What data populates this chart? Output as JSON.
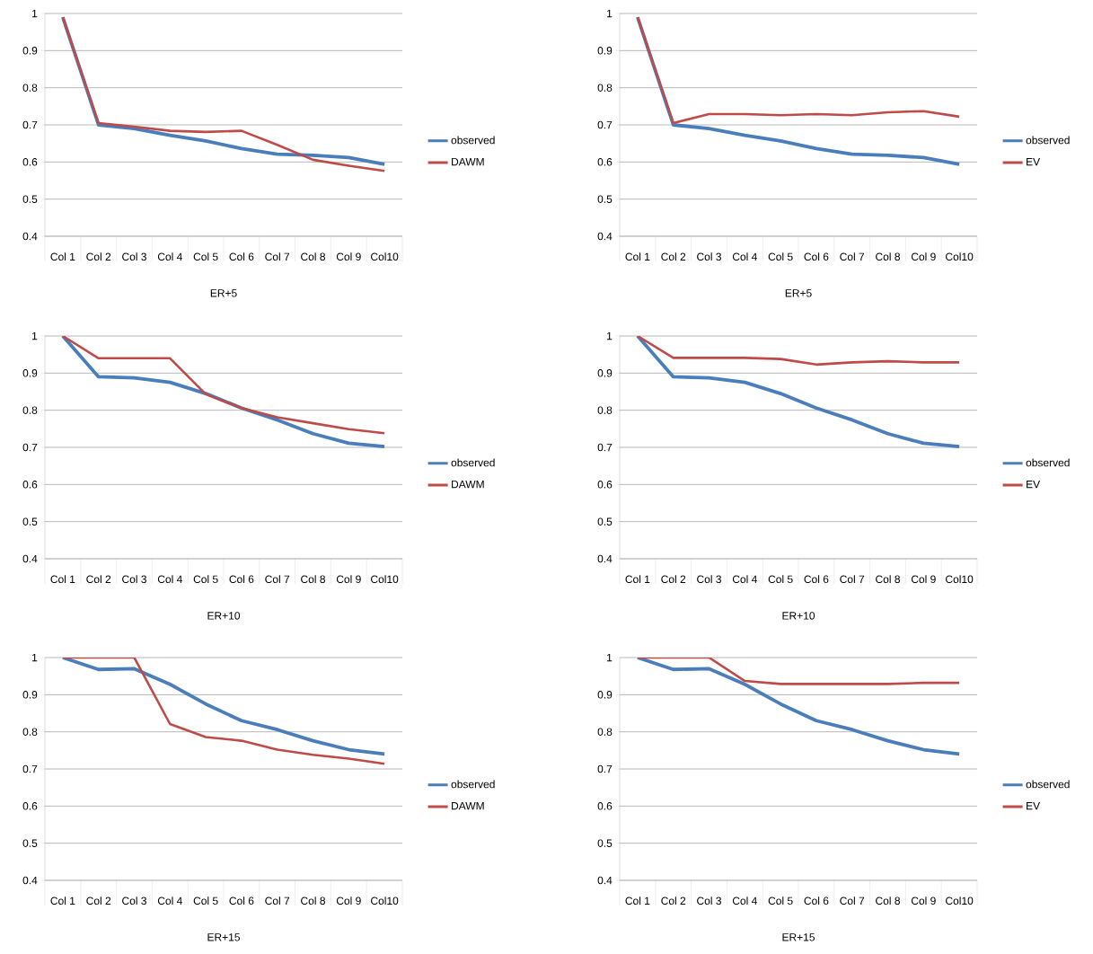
{
  "chart_data": [
    {
      "type": "line",
      "xlabel": "ER+5",
      "categories": [
        "Col 1",
        "Col 2",
        "Col 3",
        "Col 4",
        "Col 5",
        "Col 6",
        "Col 7",
        "Col 8",
        "Col 9",
        "Col10"
      ],
      "ylim": [
        0.4,
        1
      ],
      "yticks": [
        0.4,
        0.5,
        0.6,
        0.7,
        0.8,
        0.9,
        1
      ],
      "grid": "y",
      "legend": "right",
      "series": [
        {
          "name": "observed",
          "color": "#4a7ebb",
          "values": [
            0.99,
            0.7,
            0.69,
            0.672,
            0.657,
            0.636,
            0.621,
            0.618,
            0.612,
            0.594
          ]
        },
        {
          "name": "DAWM",
          "color": "#be4b48",
          "values": [
            0.99,
            0.705,
            0.695,
            0.684,
            0.681,
            0.684,
            0.646,
            0.606,
            0.59,
            0.576
          ]
        }
      ]
    },
    {
      "type": "line",
      "xlabel": "ER+5",
      "categories": [
        "Col 1",
        "Col 2",
        "Col 3",
        "Col 4",
        "Col 5",
        "Col 6",
        "Col 7",
        "Col 8",
        "Col 9",
        "Col10"
      ],
      "ylim": [
        0.4,
        1
      ],
      "yticks": [
        0.4,
        0.5,
        0.6,
        0.7,
        0.8,
        0.9,
        1
      ],
      "grid": "y",
      "legend": "right",
      "series": [
        {
          "name": "observed",
          "color": "#4a7ebb",
          "values": [
            0.99,
            0.7,
            0.69,
            0.672,
            0.657,
            0.636,
            0.621,
            0.618,
            0.612,
            0.594
          ]
        },
        {
          "name": "EV",
          "color": "#be4b48",
          "values": [
            0.99,
            0.705,
            0.729,
            0.729,
            0.726,
            0.729,
            0.726,
            0.734,
            0.737,
            0.722
          ]
        }
      ]
    },
    {
      "type": "line",
      "xlabel": "ER+10",
      "categories": [
        "Col 1",
        "Col 2",
        "Col 3",
        "Col 4",
        "Col 5",
        "Col 6",
        "Col 7",
        "Col 8",
        "Col 9",
        "Col10"
      ],
      "ylim": [
        0.4,
        1
      ],
      "yticks": [
        0.4,
        0.5,
        0.6,
        0.7,
        0.8,
        0.9,
        1
      ],
      "grid": "y",
      "legend": "right",
      "series": [
        {
          "name": "observed",
          "color": "#4a7ebb",
          "values": [
            1.0,
            0.89,
            0.887,
            0.875,
            0.845,
            0.806,
            0.774,
            0.737,
            0.711,
            0.702
          ]
        },
        {
          "name": "DAWM",
          "color": "#be4b48",
          "values": [
            1.0,
            0.94,
            0.94,
            0.94,
            0.843,
            0.806,
            0.781,
            0.765,
            0.749,
            0.738
          ]
        }
      ]
    },
    {
      "type": "line",
      "xlabel": "ER+10",
      "categories": [
        "Col 1",
        "Col 2",
        "Col 3",
        "Col 4",
        "Col 5",
        "Col 6",
        "Col 7",
        "Col 8",
        "Col 9",
        "Col10"
      ],
      "ylim": [
        0.4,
        1
      ],
      "yticks": [
        0.4,
        0.5,
        0.6,
        0.7,
        0.8,
        0.9,
        1
      ],
      "grid": "y",
      "legend": "right",
      "series": [
        {
          "name": "observed",
          "color": "#4a7ebb",
          "values": [
            1.0,
            0.89,
            0.887,
            0.875,
            0.845,
            0.806,
            0.774,
            0.737,
            0.711,
            0.702
          ]
        },
        {
          "name": "EV",
          "color": "#be4b48",
          "values": [
            1.0,
            0.941,
            0.941,
            0.941,
            0.938,
            0.923,
            0.929,
            0.932,
            0.929,
            0.929
          ]
        }
      ]
    },
    {
      "type": "line",
      "xlabel": "ER+15",
      "categories": [
        "Col 1",
        "Col 2",
        "Col 3",
        "Col 4",
        "Col 5",
        "Col 6",
        "Col 7",
        "Col 8",
        "Col 9",
        "Col10"
      ],
      "ylim": [
        0.4,
        1
      ],
      "yticks": [
        0.4,
        0.5,
        0.6,
        0.7,
        0.8,
        0.9,
        1
      ],
      "grid": "y",
      "legend": "right",
      "series": [
        {
          "name": "observed",
          "color": "#4a7ebb",
          "values": [
            1.0,
            0.968,
            0.97,
            0.928,
            0.875,
            0.83,
            0.806,
            0.776,
            0.752,
            0.74
          ]
        },
        {
          "name": "DAWM",
          "color": "#be4b48",
          "values": [
            1.0,
            1.0,
            1.0,
            0.821,
            0.786,
            0.776,
            0.752,
            0.738,
            0.728,
            0.714
          ]
        }
      ]
    },
    {
      "type": "line",
      "xlabel": "ER+15",
      "categories": [
        "Col 1",
        "Col 2",
        "Col 3",
        "Col 4",
        "Col 5",
        "Col 6",
        "Col 7",
        "Col 8",
        "Col 9",
        "Col10"
      ],
      "ylim": [
        0.4,
        1
      ],
      "yticks": [
        0.4,
        0.5,
        0.6,
        0.7,
        0.8,
        0.9,
        1
      ],
      "grid": "y",
      "legend": "right",
      "series": [
        {
          "name": "observed",
          "color": "#4a7ebb",
          "values": [
            1.0,
            0.968,
            0.97,
            0.928,
            0.875,
            0.83,
            0.806,
            0.776,
            0.752,
            0.74
          ]
        },
        {
          "name": "EV",
          "color": "#be4b48",
          "values": [
            1.0,
            1.0,
            1.0,
            0.937,
            0.929,
            0.929,
            0.929,
            0.929,
            0.932,
            0.932
          ]
        }
      ]
    }
  ]
}
